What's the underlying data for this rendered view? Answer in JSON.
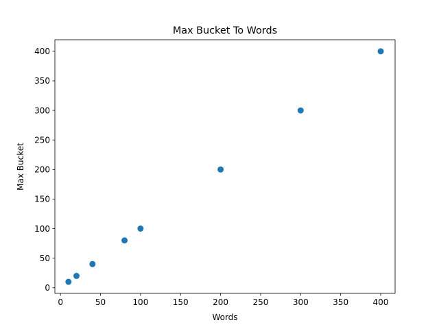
{
  "chart_data": {
    "type": "scatter",
    "title": "Max Bucket To Words",
    "xlabel": "Words",
    "ylabel": "Max Bucket",
    "xlim": [
      -7,
      418
    ],
    "ylim": [
      -9.5,
      419.5
    ],
    "xticks": [
      0,
      50,
      100,
      150,
      200,
      250,
      300,
      350,
      400
    ],
    "yticks": [
      0,
      50,
      100,
      150,
      200,
      250,
      300,
      350,
      400
    ],
    "grid": false,
    "marker_color": "#1f77b4",
    "points": [
      {
        "x": 10,
        "y": 10
      },
      {
        "x": 20,
        "y": 20
      },
      {
        "x": 40,
        "y": 40
      },
      {
        "x": 80,
        "y": 80
      },
      {
        "x": 100,
        "y": 100
      },
      {
        "x": 200,
        "y": 200
      },
      {
        "x": 300,
        "y": 300
      },
      {
        "x": 400,
        "y": 400
      }
    ]
  }
}
